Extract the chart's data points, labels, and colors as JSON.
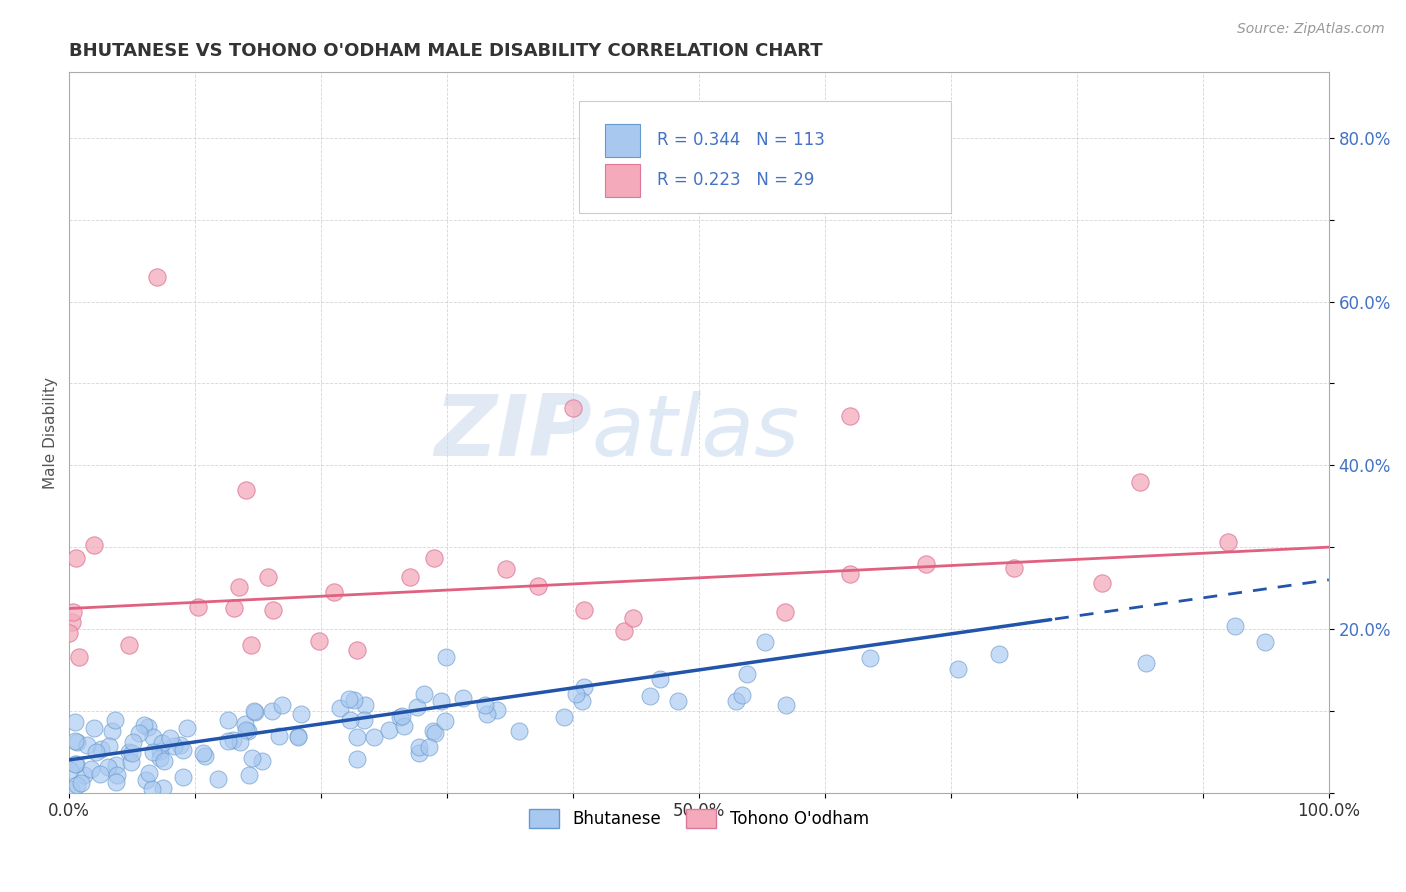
{
  "title": "BHUTANESE VS TOHONO O'ODHAM MALE DISABILITY CORRELATION CHART",
  "source": "Source: ZipAtlas.com",
  "ylabel": "Male Disability",
  "xlim": [
    0,
    1.0
  ],
  "ylim": [
    0,
    0.88
  ],
  "bhutanese_color": "#A8C8F0",
  "bhutanese_edge_color": "#6699CC",
  "tohono_color": "#F4AABB",
  "tohono_edge_color": "#DD7799",
  "R_bhutanese": 0.344,
  "N_bhutanese": 113,
  "R_tohono": 0.223,
  "N_tohono": 29,
  "trend_blue_color": "#2255AA",
  "trend_pink_color": "#E06080",
  "background_color": "#FFFFFF",
  "grid_color": "#CCCCCC",
  "title_color": "#333333",
  "legend_text_color": "#4472C4",
  "watermark_color": "#D5E4F5",
  "ytick_label_color": "#4472C4",
  "xtick_label_color": "#333333"
}
